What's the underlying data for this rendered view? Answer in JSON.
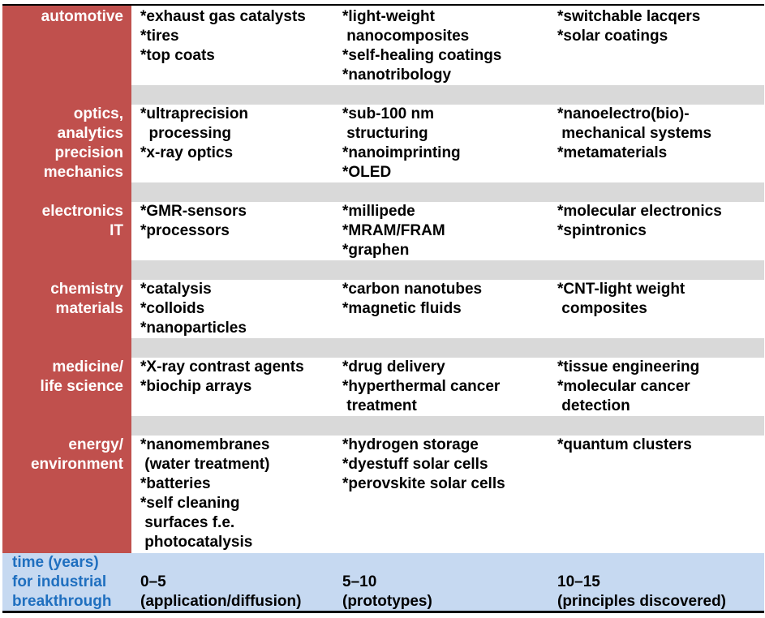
{
  "colors": {
    "label_column": "#c0504d",
    "separator_band": "#d9d9d9",
    "footer_band": "#c6d9f1",
    "footer_label_text": "#1f6fbf"
  },
  "rows": [
    {
      "category": "automotive",
      "cells": [
        "*exhaust gas catalysts\n*tires\n*top coats",
        "*light-weight\n nanocomposites\n*self-healing coatings\n*nanotribology",
        "*switchable lacqers\n*solar coatings"
      ]
    },
    {
      "category": "optics,\nanalytics\nprecision\nmechanics",
      "cells": [
        "*ultraprecision\n  processing\n*x-ray optics",
        "*sub-100 nm\n structuring\n*nanoimprinting\n*OLED",
        "*nanoelectro(bio)-\n mechanical systems\n*metamaterials"
      ]
    },
    {
      "category": "electronics\nIT",
      "cells": [
        "*GMR-sensors\n*processors",
        "*millipede\n*MRAM/FRAM\n*graphen",
        "*molecular electronics\n*spintronics"
      ]
    },
    {
      "category": "chemistry\nmaterials",
      "cells": [
        "*catalysis\n*colloids\n*nanoparticles",
        "*carbon nanotubes\n*magnetic fluids",
        "*CNT-light weight\n composites"
      ]
    },
    {
      "category": "medicine/\nlife science",
      "cells": [
        "*X-ray contrast agents\n*biochip arrays",
        "*drug delivery\n*hyperthermal cancer\n treatment",
        "*tissue engineering\n*molecular cancer\n detection"
      ]
    },
    {
      "category": "energy/\nenvironment",
      "cells": [
        "*nanomembranes\n (water treatment)\n*batteries\n*self cleaning\n surfaces f.e.\n photocatalysis",
        "*hydrogen storage\n*dyestuff solar cells\n*perovskite solar cells",
        "*quantum clusters"
      ]
    }
  ],
  "footer": {
    "label": "time (years)\nfor industrial\nbreakthrough",
    "periods": [
      "0–5\n(application/diffusion)",
      "5–10\n(prototypes)",
      "10–15\n(principles discovered)"
    ]
  }
}
